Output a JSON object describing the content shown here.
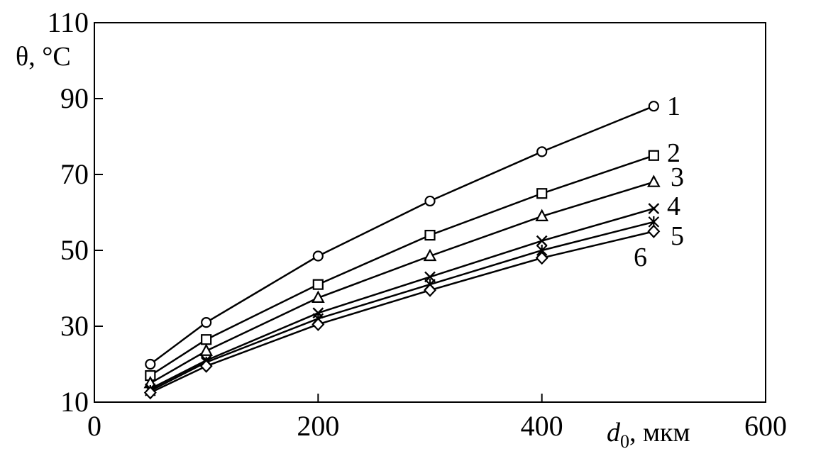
{
  "chart_data": {
    "type": "line",
    "title": "",
    "ylabel": "θ, °C",
    "xlabel": {
      "symbol": "d",
      "subscript": "0",
      "unit": ", мкм"
    },
    "xlim": [
      0,
      600
    ],
    "ylim": [
      10,
      110
    ],
    "xticks": [
      0,
      200,
      400,
      600
    ],
    "yticks": [
      10,
      30,
      50,
      70,
      90,
      110
    ],
    "grid": false,
    "legend": "none",
    "series": [
      {
        "name": "1",
        "marker": "circle",
        "x": [
          50,
          100,
          200,
          300,
          400,
          500
        ],
        "y": [
          20,
          31,
          48.5,
          63,
          76,
          88
        ]
      },
      {
        "name": "2",
        "marker": "square",
        "x": [
          50,
          100,
          200,
          300,
          400,
          500
        ],
        "y": [
          17,
          26.5,
          41,
          54,
          65,
          75
        ]
      },
      {
        "name": "3",
        "marker": "triangle",
        "x": [
          50,
          100,
          200,
          300,
          400,
          500
        ],
        "y": [
          15,
          23.5,
          37.5,
          48.5,
          59,
          68
        ]
      },
      {
        "name": "4",
        "marker": "x",
        "x": [
          50,
          100,
          200,
          300,
          400,
          500
        ],
        "y": [
          13.5,
          21,
          33.5,
          43,
          52.5,
          61
        ]
      },
      {
        "name": "5",
        "marker": "asterisk",
        "x": [
          50,
          100,
          200,
          300,
          400,
          500
        ],
        "y": [
          13,
          20.5,
          32,
          41,
          50,
          57.5
        ]
      },
      {
        "name": "6",
        "marker": "diamond",
        "x": [
          50,
          100,
          200,
          300,
          400,
          500
        ],
        "y": [
          12.5,
          19.5,
          30.5,
          39.5,
          48,
          55
        ]
      }
    ]
  }
}
